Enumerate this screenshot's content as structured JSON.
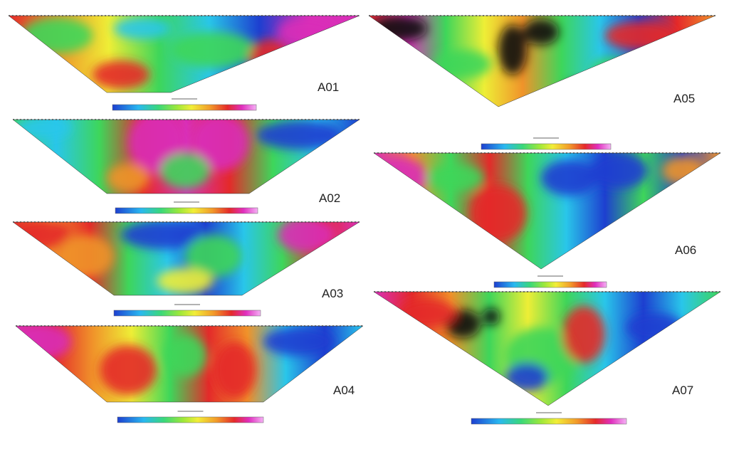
{
  "panels": [
    {
      "label": "A01"
    },
    {
      "label": "A02"
    },
    {
      "label": "A03"
    },
    {
      "label": "A04"
    },
    {
      "label": "A05"
    },
    {
      "label": "A06"
    },
    {
      "label": "A07"
    }
  ]
}
